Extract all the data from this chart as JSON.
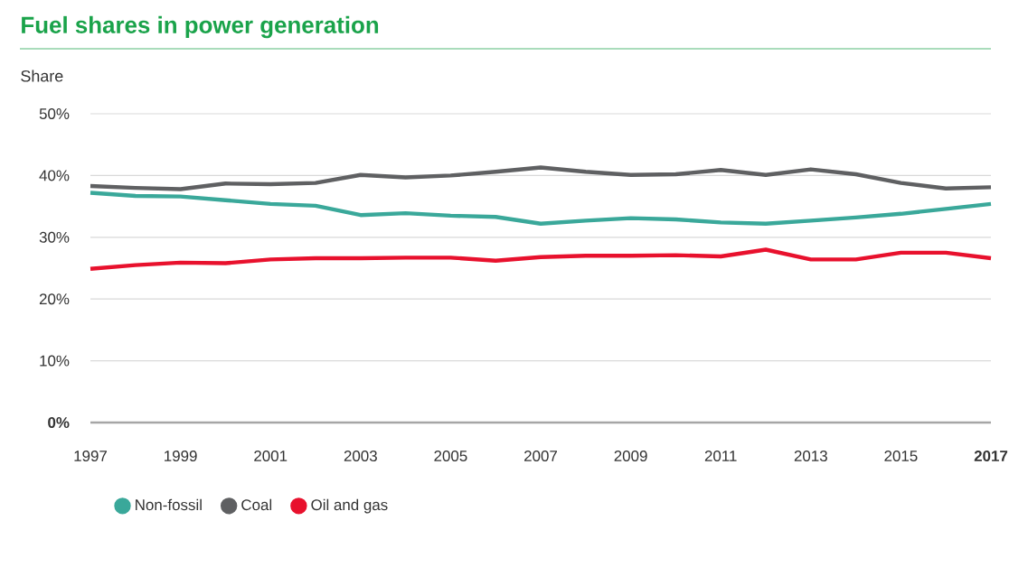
{
  "chart_data": {
    "type": "line",
    "title": "Fuel shares in power generation",
    "ylabel": "Share",
    "x": [
      1997,
      1998,
      1999,
      2000,
      2001,
      2002,
      2003,
      2004,
      2005,
      2006,
      2007,
      2008,
      2009,
      2010,
      2011,
      2012,
      2013,
      2014,
      2015,
      2016,
      2017
    ],
    "series": [
      {
        "name": "Non-fossil",
        "color": "#3aa89a",
        "values": [
          37.2,
          36.7,
          36.6,
          36.0,
          35.4,
          35.1,
          33.6,
          33.9,
          33.5,
          33.3,
          32.2,
          32.7,
          33.1,
          32.9,
          32.4,
          32.2,
          32.7,
          33.2,
          33.8,
          34.6,
          35.4
        ]
      },
      {
        "name": "Coal",
        "color": "#5f6062",
        "values": [
          38.3,
          38.0,
          37.8,
          38.7,
          38.6,
          38.8,
          40.1,
          39.7,
          40.0,
          40.6,
          41.3,
          40.6,
          40.1,
          40.2,
          40.9,
          40.1,
          41.0,
          40.2,
          38.8,
          37.9,
          38.1
        ]
      },
      {
        "name": "Oil and gas",
        "color": "#e8112d",
        "values": [
          24.9,
          25.5,
          25.9,
          25.8,
          26.4,
          26.6,
          26.6,
          26.7,
          26.7,
          26.2,
          26.8,
          27.0,
          27.0,
          27.1,
          26.9,
          28.0,
          26.4,
          26.4,
          27.5,
          27.5,
          26.6
        ]
      }
    ],
    "xlim": [
      1997,
      2017
    ],
    "xticks": [
      1997,
      1999,
      2001,
      2003,
      2005,
      2007,
      2009,
      2011,
      2013,
      2015,
      {
        "value": 2017,
        "label": "**2017**"
      }
    ],
    "ylim": [
      0,
      50
    ],
    "yticks": [
      {
        "value": 0,
        "label": "**0%**"
      },
      {
        "value": 10,
        "label": "10%"
      },
      {
        "value": 20,
        "label": "20%"
      },
      {
        "value": 30,
        "label": "30%"
      },
      {
        "value": 40,
        "label": "40%"
      },
      {
        "value": 50,
        "label": "50%"
      }
    ],
    "grid": "y",
    "legend": "bottom",
    "marker": "none",
    "line_style": "solid"
  }
}
